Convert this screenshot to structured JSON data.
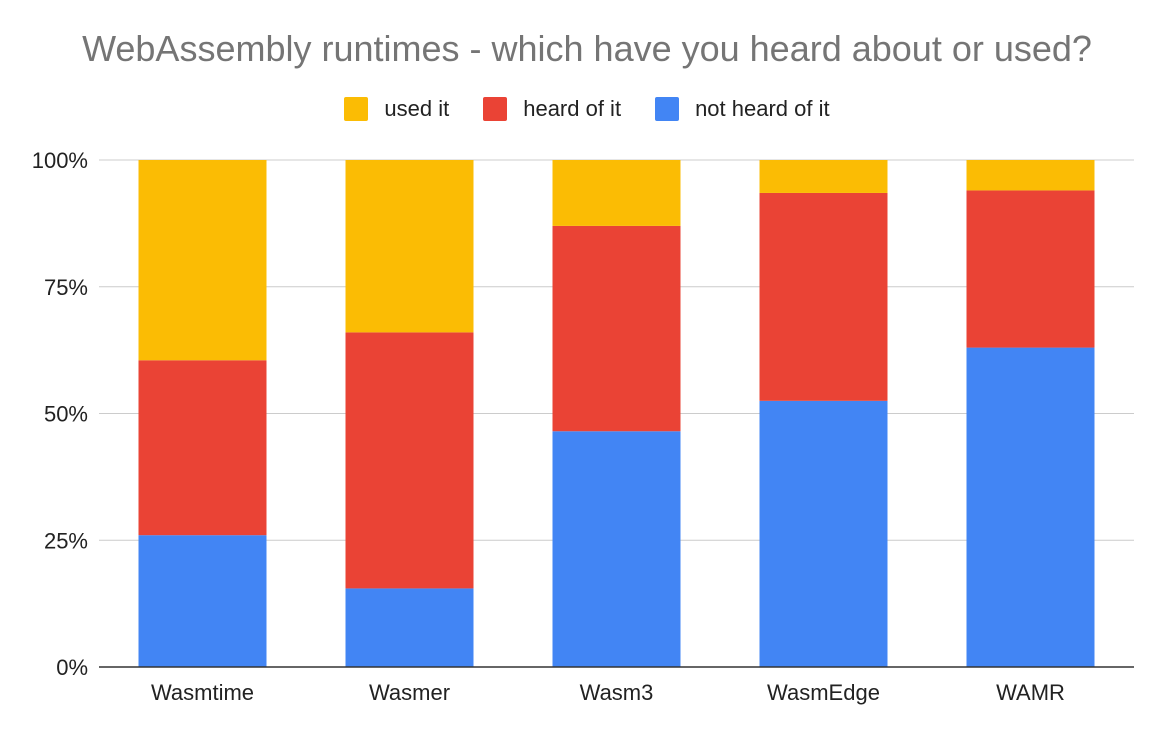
{
  "chart_data": {
    "type": "bar",
    "stacked": "percent",
    "title": "WebAssembly runtimes - which have you heard about or used?",
    "categories": [
      "Wasmtime",
      "Wasmer",
      "Wasm3",
      "WasmEdge",
      "WAMR"
    ],
    "series": [
      {
        "name": "not heard of it",
        "color": "#4285f4",
        "values": [
          26,
          15.5,
          46.5,
          52.5,
          63
        ]
      },
      {
        "name": "heard of it",
        "color": "#ea4335",
        "values": [
          34.5,
          50.5,
          40.5,
          41,
          31
        ]
      },
      {
        "name": "used it",
        "color": "#fbbc04",
        "values": [
          39.5,
          34,
          13,
          6.5,
          6
        ]
      }
    ],
    "ylim": [
      0,
      100
    ],
    "yticks": [
      "0%",
      "25%",
      "50%",
      "75%",
      "100%"
    ],
    "grid": true,
    "legend_position": "top-center",
    "legend_order": [
      "used it",
      "heard of it",
      "not heard of it"
    ]
  }
}
